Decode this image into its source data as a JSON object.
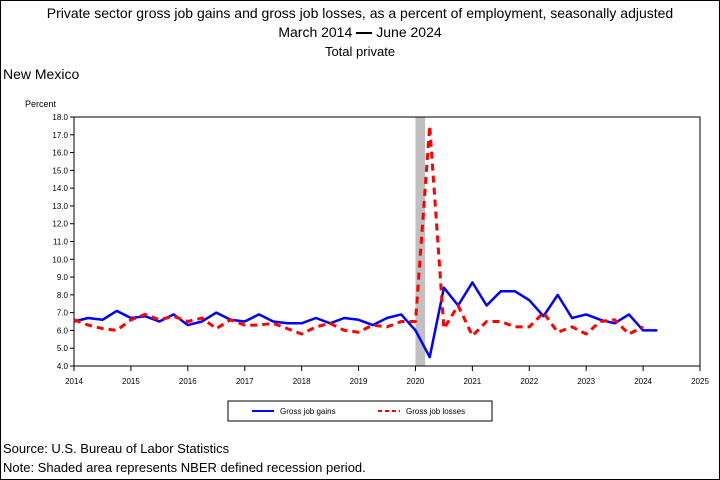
{
  "header": {
    "title": "Private sector gross job gains and gross job losses, as a percent of employment, seasonally adjusted",
    "period_start": "March 2014",
    "period_end": "June 2024",
    "subtitle": "Total private",
    "area": "New Mexico"
  },
  "footer": {
    "source": "Source: U.S. Bureau of Labor Statistics",
    "note": "Note: Shaded area represents NBER defined recession period."
  },
  "chart_data": {
    "type": "line",
    "ylabel": "Percent",
    "xlim": [
      2014,
      2025
    ],
    "ylim": [
      4.0,
      18.0
    ],
    "yticks": [
      "4.0",
      "5.0",
      "6.0",
      "7.0",
      "8.0",
      "9.0",
      "10.0",
      "11.0",
      "12.0",
      "13.0",
      "14.0",
      "15.0",
      "16.0",
      "17.0",
      "18.0"
    ],
    "xticks": [
      "2014",
      "2015",
      "2016",
      "2017",
      "2018",
      "2019",
      "2020",
      "2021",
      "2022",
      "2023",
      "2024",
      "2025"
    ],
    "recession": [
      2020.0,
      2020.17
    ],
    "recession_color": "#c0c0c0",
    "legend_position": "bottom",
    "series": [
      {
        "name": "Gross job gains",
        "color": "#0000ff",
        "style": "solid",
        "x": [
          2014.0,
          2014.25,
          2014.5,
          2014.75,
          2015.0,
          2015.25,
          2015.5,
          2015.75,
          2016.0,
          2016.25,
          2016.5,
          2016.75,
          2017.0,
          2017.25,
          2017.5,
          2017.75,
          2018.0,
          2018.25,
          2018.5,
          2018.75,
          2019.0,
          2019.25,
          2019.5,
          2019.75,
          2020.0,
          2020.25,
          2020.5,
          2020.75,
          2021.0,
          2021.25,
          2021.5,
          2021.75,
          2022.0,
          2022.25,
          2022.5,
          2022.75,
          2023.0,
          2023.25,
          2023.5,
          2023.75,
          2024.0,
          2024.25
        ],
        "values": [
          6.5,
          6.7,
          6.6,
          7.1,
          6.7,
          6.8,
          6.5,
          6.9,
          6.3,
          6.5,
          7.0,
          6.6,
          6.5,
          6.9,
          6.5,
          6.4,
          6.4,
          6.7,
          6.4,
          6.7,
          6.6,
          6.3,
          6.7,
          6.9,
          6.0,
          4.5,
          8.4,
          7.4,
          8.7,
          7.4,
          8.2,
          8.2,
          7.7,
          6.8,
          8.0,
          6.7,
          6.9,
          6.6,
          6.4,
          6.9,
          6.0,
          6.0
        ]
      },
      {
        "name": "Gross job losses",
        "color": "#ff0000",
        "style": "dashed",
        "x": [
          2014.0,
          2014.25,
          2014.5,
          2014.75,
          2015.0,
          2015.25,
          2015.5,
          2015.75,
          2016.0,
          2016.25,
          2016.5,
          2016.75,
          2017.0,
          2017.25,
          2017.5,
          2017.75,
          2018.0,
          2018.25,
          2018.5,
          2018.75,
          2019.0,
          2019.25,
          2019.5,
          2019.75,
          2020.0,
          2020.25,
          2020.5,
          2020.75,
          2021.0,
          2021.25,
          2021.5,
          2021.75,
          2022.0,
          2022.25,
          2022.5,
          2022.75,
          2023.0,
          2023.25,
          2023.5,
          2023.75,
          2024.0
        ],
        "values": [
          6.6,
          6.3,
          6.1,
          6.0,
          6.6,
          6.9,
          6.6,
          6.8,
          6.5,
          6.7,
          6.1,
          6.6,
          6.3,
          6.3,
          6.4,
          6.1,
          5.8,
          6.2,
          6.4,
          6.0,
          5.9,
          6.3,
          6.2,
          6.5,
          6.5,
          17.5,
          6.1,
          7.4,
          5.7,
          6.5,
          6.5,
          6.2,
          6.2,
          7.0,
          5.9,
          6.2,
          5.8,
          6.5,
          6.6,
          5.8,
          6.2
        ]
      }
    ]
  }
}
